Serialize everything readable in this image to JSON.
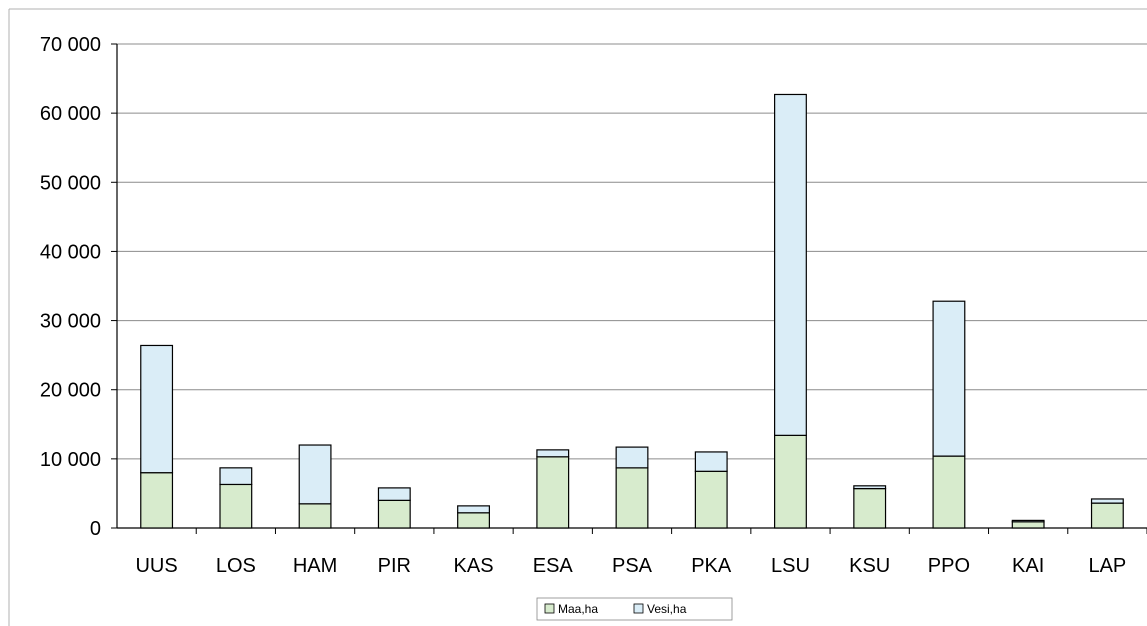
{
  "chart_data": {
    "type": "bar",
    "stacked": true,
    "categories": [
      "UUS",
      "LOS",
      "HAM",
      "PIR",
      "KAS",
      "ESA",
      "PSA",
      "PKA",
      "LSU",
      "KSU",
      "PPO",
      "KAI",
      "LAP"
    ],
    "series": [
      {
        "name": "Maa,ha",
        "color": "#d7ebcd",
        "values": [
          8000,
          6300,
          3500,
          4000,
          2200,
          10300,
          8700,
          8200,
          13400,
          5700,
          10400,
          900,
          3600
        ]
      },
      {
        "name": "Vesi,ha",
        "color": "#daedf7",
        "values": [
          18400,
          2400,
          8500,
          1800,
          1000,
          1000,
          3000,
          2800,
          49300,
          400,
          22400,
          200,
          600
        ]
      }
    ],
    "yticks": [
      "0",
      "10 000",
      "20 000",
      "30 000",
      "40 000",
      "50 000",
      "60 000",
      "70 000"
    ],
    "ylim": [
      0,
      70000
    ],
    "title": "",
    "xlabel": "",
    "ylabel": "",
    "grid": true,
    "legend_position": "bottom"
  }
}
